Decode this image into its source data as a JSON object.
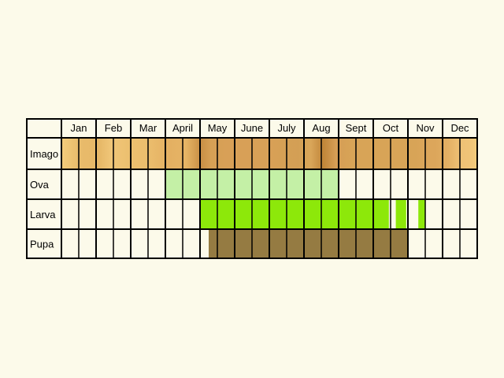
{
  "chart_data": {
    "type": "table",
    "columns": [
      "Jan",
      "Feb",
      "Mar",
      "April",
      "May",
      "June",
      "July",
      "Aug",
      "Sept",
      "Oct",
      "Nov",
      "Dec"
    ],
    "cells_per_month": 2,
    "rows": [
      {
        "label": "Imago",
        "fill": "gradient",
        "colors": [
          "#f3cd7c",
          "#e9bc6c",
          "#e6b767",
          "#f0c678",
          "#ecc070",
          "#ebbd6d",
          "#e4b062",
          "#e6b465",
          "#c98f45",
          "#d6a055",
          "#d8a057",
          "#d8a057",
          "#d8a057",
          "#d6a055",
          "#d39f55",
          "#d9a659",
          "#c18639",
          "#d59d55",
          "#d8a457",
          "#d8a457",
          "#d8a457",
          "#d8a457",
          "#dca65b",
          "#dca65b",
          "#e3b064",
          "#efc276",
          "#f0c377",
          "#f3cc7c"
        ],
        "gradient_stops": [
          0,
          0.04,
          0.09,
          0.12,
          0.16,
          0.21,
          0.26,
          0.3,
          0.335,
          0.36,
          0.4,
          0.45,
          0.5,
          0.53,
          0.57,
          0.6,
          0.63,
          0.66,
          0.7,
          0.75,
          0.8,
          0.85,
          0.88,
          0.9,
          0.93,
          0.96,
          0.98,
          1
        ]
      },
      {
        "label": "Ova",
        "fill": "segments",
        "color": "#c4f0a6",
        "segments": [
          [
            3.0,
            8.0
          ]
        ]
      },
      {
        "label": "Larva",
        "fill": "segments",
        "color": "#8de80a",
        "segments": [
          [
            4.0,
            9.45
          ],
          [
            9.65,
            9.95
          ],
          [
            10.3,
            10.5
          ]
        ]
      },
      {
        "label": "Pupa",
        "fill": "segments",
        "color": "#957b42",
        "segments": [
          [
            4.25,
            10.0
          ]
        ]
      }
    ]
  }
}
